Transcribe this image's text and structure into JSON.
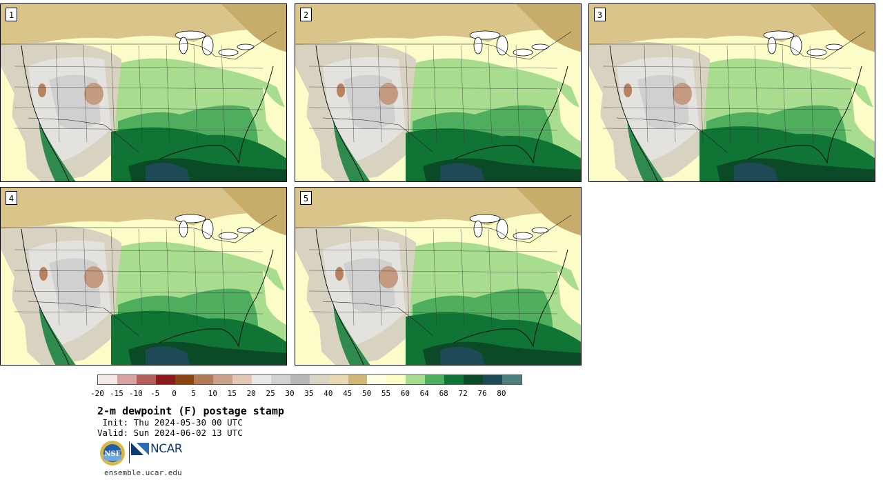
{
  "panels": [
    {
      "label": "1"
    },
    {
      "label": "2"
    },
    {
      "label": "3"
    },
    {
      "label": "4"
    },
    {
      "label": "5"
    }
  ],
  "colorbar": {
    "colors": [
      "#f3e9e9",
      "#d6a3a3",
      "#b35d5d",
      "#8b1a1a",
      "#8b4513",
      "#b07a56",
      "#c9a088",
      "#e0c7b8",
      "#e8e8e8",
      "#d2d2d2",
      "#b8b8b8",
      "#d9d4c3",
      "#e8d9b3",
      "#d2b877",
      "#fefee6",
      "#fbfcc8",
      "#a8dc8e",
      "#4eae5e",
      "#0f7434",
      "#0b4a26",
      "#1e4a55",
      "#4d7f7f"
    ],
    "tick_labels": [
      "-20",
      "-15",
      "-10",
      "-5",
      "0",
      "5",
      "10",
      "15",
      "20",
      "25",
      "30",
      "35",
      "40",
      "45",
      "50",
      "55",
      "60",
      "64",
      "68",
      "72",
      "76",
      "80"
    ]
  },
  "title": "2-m dewpoint (F) postage stamp",
  "init_line": " Init: Thu 2024-05-30 00 UTC",
  "valid_line": "Valid: Sun 2024-06-02 13 UTC",
  "logos": {
    "nsf": "NSF",
    "ncar": "NCAR"
  },
  "footer_url": "ensemble.ucar.edu"
}
